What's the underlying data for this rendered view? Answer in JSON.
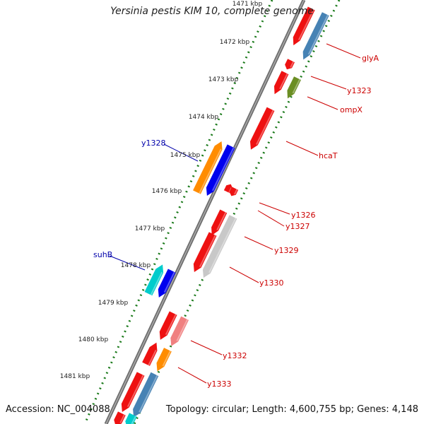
{
  "title": "Yersinia pestis KIM 10, complete genome",
  "footer": {
    "accession": "Accession: NC_004088",
    "summary": "Topology: circular; Length: 4,600,755 bp; Genes: 4,148"
  },
  "kbp_ticks": [
    "1471 kbp",
    "1472 kbp",
    "1473 kbp",
    "1474 kbp",
    "1475 kbp",
    "1476 kbp",
    "1477 kbp",
    "1478 kbp",
    "1479 kbp",
    "1480 kbp",
    "1481 kbp"
  ],
  "gene_labels_right": [
    "glyA",
    "y1323",
    "ompX",
    "hcaT",
    "y1326",
    "y1327",
    "y1329",
    "y1330",
    "y1332",
    "y1333"
  ],
  "gene_labels_left": [
    "y1328",
    "suhB"
  ],
  "colors": {
    "backbone": "#666666",
    "dotted_track": "#1a7a1a",
    "label_right": "#cc0000",
    "label_left": "#0000aa",
    "gene_red": "#ee1111",
    "gene_blue": "#0000ee",
    "gene_steelblue": "#4682b4",
    "gene_olive": "#6b8e23",
    "gene_orange": "#ff8c00",
    "gene_cyan": "#00cccc",
    "gene_lightgray": "#c8c8c8",
    "gene_pink": "#f08080"
  }
}
